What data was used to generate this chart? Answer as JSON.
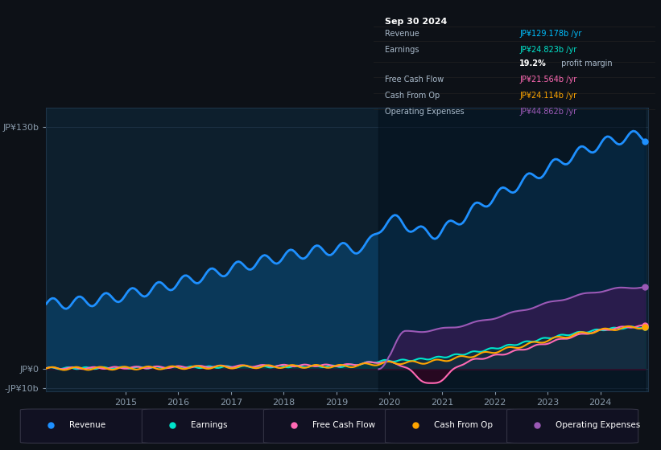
{
  "bg_color": "#0d1117",
  "plot_bg_color": "#0d1f2d",
  "grid_color": "#1e3448",
  "title_box": {
    "date": "Sep 30 2024",
    "rows": [
      {
        "label": "Revenue",
        "value": "JP¥129.178b /yr",
        "value_color": "#00bfff"
      },
      {
        "label": "Earnings",
        "value": "JP¥24.823b /yr",
        "value_color": "#00e5cc"
      },
      {
        "label": "",
        "value": "19.2% profit margin",
        "value_color": "#ffffff"
      },
      {
        "label": "Free Cash Flow",
        "value": "JP¥21.564b /yr",
        "value_color": "#ff69b4"
      },
      {
        "label": "Cash From Op",
        "value": "JP¥24.114b /yr",
        "value_color": "#ffa500"
      },
      {
        "label": "Operating Expenses",
        "value": "JP¥44.862b /yr",
        "value_color": "#9b59b6"
      }
    ]
  },
  "ylim": [
    -12,
    140
  ],
  "yticks": [
    -10,
    0,
    130
  ],
  "ytick_labels": [
    "-JP¥10b",
    "JP¥0",
    "JP¥130b"
  ],
  "colors": {
    "revenue": "#1e90ff",
    "revenue_fill": "#0a3a5c",
    "earnings": "#00e5cc",
    "earnings_fill": "#003d35",
    "free_cash_flow": "#ff69b4",
    "cash_from_op": "#ffa500",
    "operating_expenses": "#9b59b6",
    "operating_expenses_fill": "#2d1b4e"
  },
  "legend": [
    {
      "label": "Revenue",
      "color": "#1e90ff"
    },
    {
      "label": "Earnings",
      "color": "#00e5cc"
    },
    {
      "label": "Free Cash Flow",
      "color": "#ff69b4"
    },
    {
      "label": "Cash From Op",
      "color": "#ffa500"
    },
    {
      "label": "Operating Expenses",
      "color": "#9b59b6"
    }
  ],
  "x_start_year": 2013.5,
  "x_end_year": 2024.9,
  "xtick_years": [
    2015,
    2016,
    2017,
    2018,
    2019,
    2020,
    2021,
    2022,
    2023,
    2024
  ]
}
